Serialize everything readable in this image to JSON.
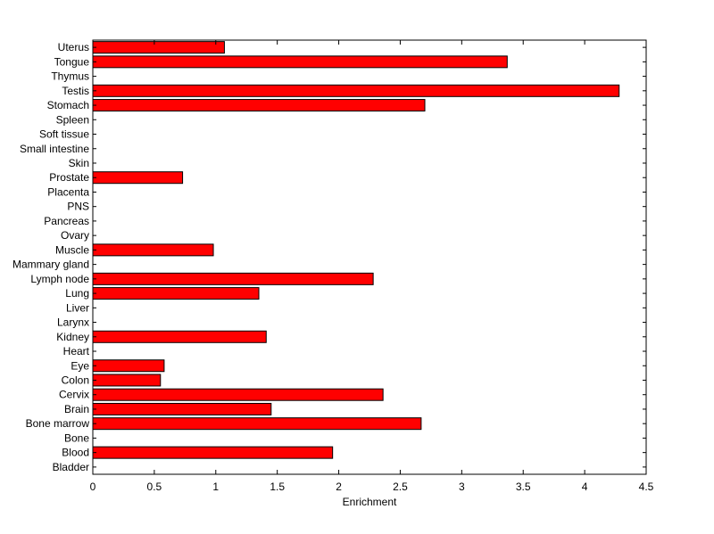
{
  "chart_data": {
    "type": "bar",
    "orientation": "horizontal",
    "title": "",
    "xlabel": "Enrichment",
    "ylabel": "",
    "xlim": [
      0,
      4.5
    ],
    "xticks": [
      "0",
      "0.5",
      "1",
      "1.5",
      "2",
      "2.5",
      "3",
      "3.5",
      "4",
      "4.5"
    ],
    "grid": false,
    "bar_color": "#ff0000",
    "bar_edge_color": "#000000",
    "categories": [
      "Bladder",
      "Blood",
      "Bone",
      "Bone marrow",
      "Brain",
      "Cervix",
      "Colon",
      "Eye",
      "Heart",
      "Kidney",
      "Larynx",
      "Liver",
      "Lung",
      "Lymph node",
      "Mammary gland",
      "Muscle",
      "Ovary",
      "Pancreas",
      "PNS",
      "Placenta",
      "Prostate",
      "Skin",
      "Small intestine",
      "Soft tissue",
      "Spleen",
      "Stomach",
      "Testis",
      "Thymus",
      "Tongue",
      "Uterus"
    ],
    "values": [
      0,
      1.95,
      0,
      2.67,
      1.45,
      2.36,
      0.55,
      0.58,
      0,
      1.41,
      0,
      0,
      1.35,
      2.28,
      0,
      0.98,
      0,
      0,
      0,
      0,
      0.73,
      0,
      0,
      0,
      0,
      2.7,
      4.28,
      0,
      3.37,
      1.07
    ]
  }
}
